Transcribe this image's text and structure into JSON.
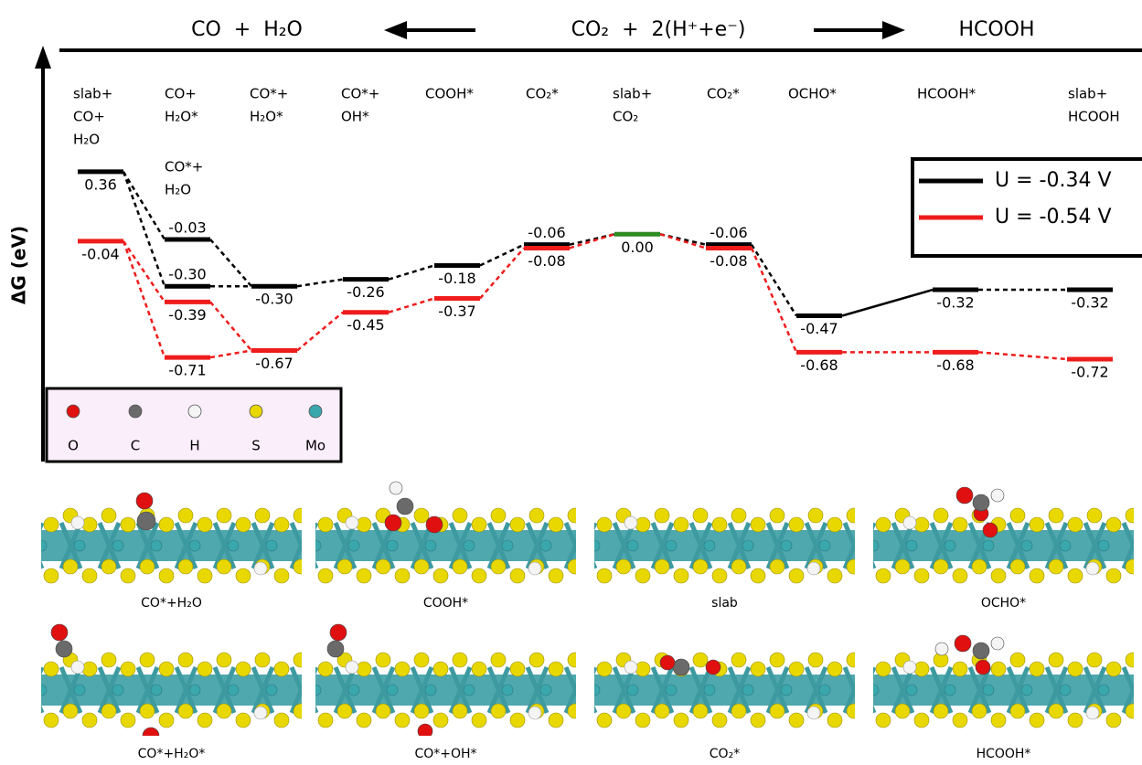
{
  "header": {
    "left": "CO  +  H₂O",
    "center": "CO₂  +  2(H⁺+e⁻)",
    "right": "HCOOH"
  },
  "chart_data": {
    "type": "energy",
    "ylabel": "ΔG (eV)",
    "categories": [
      [
        "slab+",
        "CO+",
        "H₂O"
      ],
      [
        "CO*+",
        "H₂O"
      ],
      [
        "CO+",
        "H₂O*"
      ],
      [
        "CO*+",
        "H₂O*"
      ],
      [
        "CO*+",
        "OH*"
      ],
      [
        "COOH*"
      ],
      [
        "CO₂*"
      ],
      [
        "slab+",
        "CO₂"
      ],
      [
        "CO₂*"
      ],
      [
        "OCHO*"
      ],
      [
        "HCOOH*"
      ],
      [
        "slab+",
        "HCOOH"
      ]
    ],
    "series": [
      {
        "name": "U = -0.34 V",
        "color": "#000000",
        "values": [
          0.36,
          -0.03,
          -0.3,
          -0.3,
          -0.26,
          -0.18,
          -0.06,
          null,
          -0.06,
          -0.47,
          -0.32,
          -0.32
        ],
        "value_labels": [
          "0.36",
          "-0.03",
          "-0.30",
          "-0.30",
          "-0.26",
          "-0.18",
          "-0.06",
          null,
          "-0.06",
          "-0.47",
          "-0.32",
          "-0.32"
        ]
      },
      {
        "name": "U = -0.54 V",
        "color": "#ee1c1c",
        "values": [
          -0.04,
          -0.39,
          -0.71,
          -0.67,
          -0.45,
          -0.37,
          -0.08,
          null,
          -0.08,
          -0.68,
          -0.68,
          -0.72
        ],
        "value_labels": [
          "-0.04",
          "-0.39",
          "-0.71",
          "-0.67",
          "-0.45",
          "-0.37",
          "-0.08",
          null,
          "-0.08",
          "-0.68",
          "-0.68",
          "-0.72"
        ]
      }
    ],
    "reference": {
      "value": 0,
      "value_label": "0.00",
      "color": "#2e8b1f"
    },
    "ylim": [
      -1.31,
      1.06
    ],
    "legend": "upper right"
  },
  "atom_legend": [
    {
      "label": "O",
      "color": "#e01010"
    },
    {
      "label": "C",
      "color": "#6a6a6a"
    },
    {
      "label": "H",
      "color": "#f4f4f4"
    },
    {
      "label": "S",
      "color": "#e8d800"
    },
    {
      "label": "Mo",
      "color": "#3aa7ad"
    }
  ],
  "structures": [
    "CO*+H₂O",
    "COOH*",
    "slab",
    "OCHO*",
    "CO*+H₂O*",
    "CO*+OH*",
    "CO₂*",
    "HCOOH*"
  ]
}
